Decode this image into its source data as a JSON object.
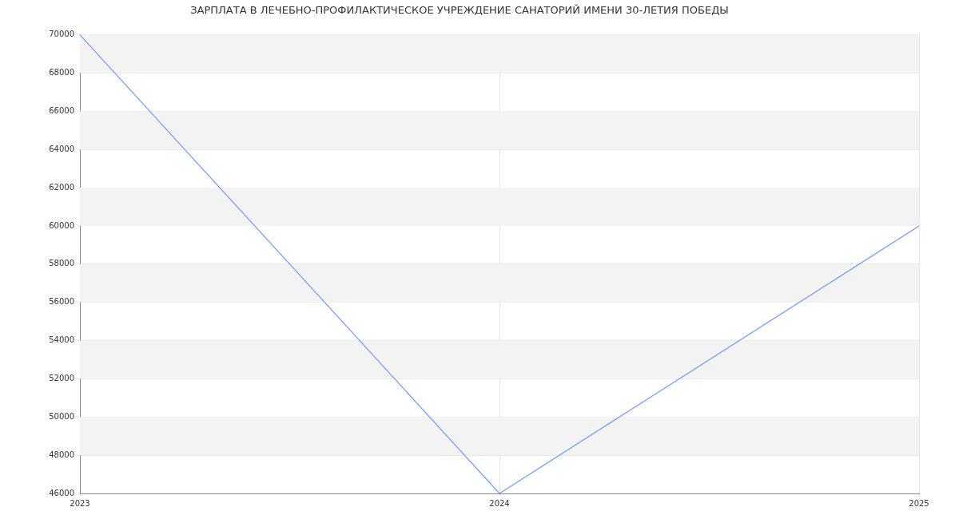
{
  "chart_data": {
    "type": "line",
    "title": "ЗАРПЛАТА В ЛЕЧЕБНО-ПРОФИЛАКТИЧЕСКОЕ УЧРЕЖДЕНИЕ САНАТОРИЙ ИМЕНИ 30-ЛЕТИЯ ПОБЕДЫ",
    "x": [
      2023,
      2024,
      2025
    ],
    "series": [
      {
        "color": "#6f9cf5",
        "values": [
          70000,
          46000,
          60000
        ]
      }
    ],
    "xlim": [
      2023,
      2025
    ],
    "xticks": [
      2023,
      2024,
      2025
    ],
    "ylim": [
      46000,
      70000
    ],
    "yticks": [
      46000,
      48000,
      50000,
      52000,
      54000,
      56000,
      58000,
      60000,
      62000,
      64000,
      66000,
      68000,
      70000
    ],
    "grid": true,
    "legend": false,
    "marker": "none",
    "line_style": "solid"
  }
}
